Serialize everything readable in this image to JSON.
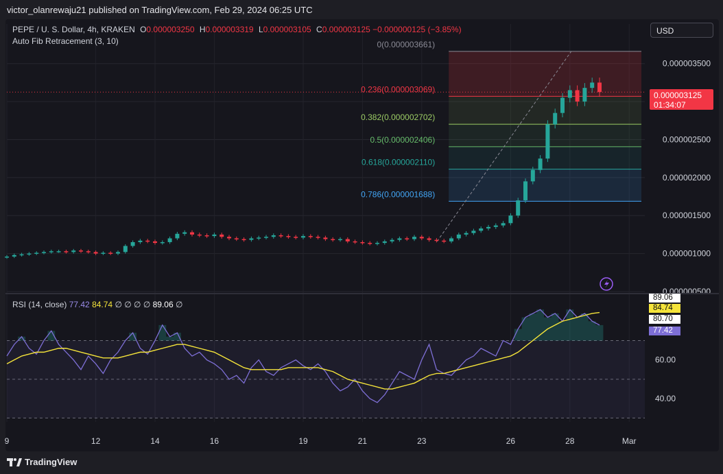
{
  "publisher": "victor_olanrewaju21 published on TradingView.com, Feb 29, 2024 06:25 UTC",
  "legend": {
    "symbol": "PEPE / U. S. Dollar, 4h, KRAKEN",
    "o_label": "O",
    "o_value": "0.000003250",
    "h_label": "H",
    "h_value": "0.000003319",
    "l_label": "L",
    "l_value": "0.000003105",
    "c_label": "C",
    "c_value": "0.000003125",
    "change": "−0.000000125 (−3.85%)",
    "indicator": "Auto Fib Retracement (3, 10)"
  },
  "currency_button": "USD",
  "last_price": {
    "value": "0.000003125",
    "countdown": "01:34:07"
  },
  "rsi_legend": {
    "name": "RSI (14, close)",
    "v1": "77.42",
    "v2": "84.74",
    "sym": "∅ ∅ ∅ ∅",
    "v3": "89.06",
    "sym2": "∅"
  },
  "rsi_tags": [
    "89.06",
    "84.74",
    "80.70",
    "77.42"
  ],
  "footer_brand": "TradingView",
  "colors": {
    "up": "#26a69a",
    "down": "#f23645",
    "rsi": "#7e6fd6",
    "rsi_ma": "#f5e43a",
    "bg": "#16161d"
  },
  "chart_data": {
    "type": "candlestick",
    "price_axis": {
      "labels": [
        "0.000003500",
        "0.000003000",
        "0.000002500",
        "0.000002000",
        "0.000001500",
        "0.000001000",
        "0.000000500"
      ],
      "values": [
        3.5e-06,
        3e-06,
        2.5e-06,
        2e-06,
        1.5e-06,
        1e-06,
        5e-07
      ],
      "range": [
        5e-07,
        3.75e-06
      ]
    },
    "x_axis": {
      "labels": [
        "9",
        "12",
        "14",
        "16",
        "19",
        "21",
        "23",
        "26",
        "28",
        "Mar"
      ],
      "index": [
        0,
        12,
        20,
        28,
        40,
        48,
        56,
        68,
        76,
        84
      ]
    },
    "fib_levels": [
      {
        "label": "0(0.000003661)",
        "value": 3.661e-06,
        "color": "#8a8a95"
      },
      {
        "label": "0.236(0.000003069)",
        "value": 3.069e-06,
        "color": "#f23645"
      },
      {
        "label": "0.382(0.000002702)",
        "value": 2.702e-06,
        "color": "#9ccc65"
      },
      {
        "label": "0.5(0.000002406)",
        "value": 2.406e-06,
        "color": "#66bb6a"
      },
      {
        "label": "0.618(0.000002110)",
        "value": 2.11e-06,
        "color": "#26a69a"
      },
      {
        "label": "0.786(0.000001688)",
        "value": 1.688e-06,
        "color": "#42a5f5"
      }
    ],
    "fib_start_index": 59,
    "fib_trend_low": 1.16e-06,
    "fib_trend_high_index": 76,
    "closes": [
      0.96,
      0.98,
      0.99,
      1.0,
      1.01,
      1.02,
      1.03,
      1.03,
      1.02,
      1.04,
      1.03,
      1.02,
      1.0,
      1.01,
      1.0,
      1.02,
      1.1,
      1.15,
      1.17,
      1.16,
      1.14,
      1.15,
      1.2,
      1.26,
      1.28,
      1.25,
      1.24,
      1.23,
      1.25,
      1.22,
      1.2,
      1.19,
      1.18,
      1.2,
      1.21,
      1.22,
      1.24,
      1.23,
      1.22,
      1.21,
      1.23,
      1.22,
      1.21,
      1.19,
      1.18,
      1.19,
      1.16,
      1.15,
      1.14,
      1.13,
      1.14,
      1.16,
      1.18,
      1.2,
      1.19,
      1.22,
      1.2,
      1.18,
      1.17,
      1.16,
      1.2,
      1.25,
      1.27,
      1.3,
      1.33,
      1.35,
      1.37,
      1.4,
      1.5,
      1.7,
      1.95,
      2.1,
      2.25,
      2.7,
      2.85,
      3.05,
      3.15,
      3.0,
      3.18,
      3.25,
      3.125
    ],
    "rsi": {
      "scale_labels": [
        "60.00",
        "40.00"
      ],
      "scale_values": [
        60,
        40
      ],
      "bands": [
        70,
        50,
        30
      ],
      "range": [
        28,
        90
      ],
      "values": [
        62,
        68,
        72,
        66,
        63,
        70,
        75,
        68,
        64,
        60,
        55,
        62,
        58,
        53,
        60,
        64,
        70,
        74,
        66,
        63,
        70,
        78,
        72,
        74,
        66,
        62,
        64,
        60,
        58,
        55,
        50,
        52,
        48,
        56,
        60,
        54,
        52,
        56,
        58,
        60,
        57,
        55,
        58,
        54,
        48,
        44,
        46,
        50,
        44,
        40,
        38,
        42,
        48,
        54,
        52,
        50,
        60,
        68,
        55,
        53,
        52,
        56,
        60,
        62,
        66,
        64,
        62,
        70,
        68,
        76,
        82,
        84,
        86,
        82,
        84,
        80,
        86,
        82,
        84,
        80,
        78
      ],
      "ma": [
        58,
        60,
        62,
        63,
        64,
        64,
        65,
        66,
        66,
        65,
        64,
        63,
        62,
        61,
        61,
        61,
        62,
        63,
        64,
        64,
        65,
        66,
        67,
        68,
        68,
        67,
        66,
        65,
        64,
        62,
        60,
        58,
        56,
        55,
        55,
        55,
        55,
        55,
        56,
        56,
        56,
        56,
        56,
        55,
        54,
        52,
        50,
        49,
        48,
        47,
        46,
        45,
        45,
        46,
        47,
        48,
        50,
        52,
        53,
        53,
        54,
        55,
        56,
        57,
        58,
        59,
        60,
        61,
        62,
        64,
        67,
        70,
        73,
        76,
        78,
        80,
        81,
        82,
        83,
        84,
        84.5
      ]
    }
  }
}
